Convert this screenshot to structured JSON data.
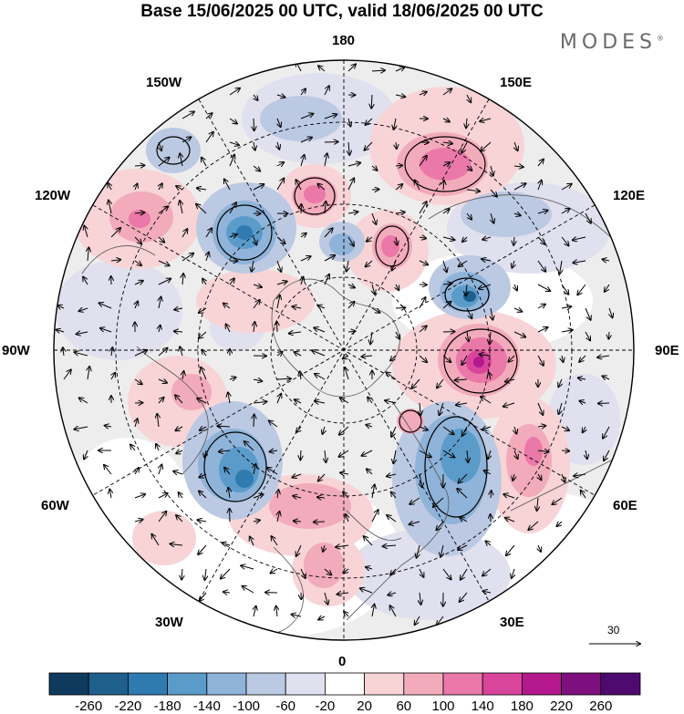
{
  "title": "Base 15/06/2025 00 UTC, valid 18/06/2025 00 UTC",
  "brand": "MODES",
  "brand_mark": "®",
  "longitude_labels": {
    "top": "180",
    "bottom": "0",
    "left": "90W",
    "right": "90E",
    "upper_left_1": "150W",
    "upper_left_2": "120W",
    "upper_right_1": "150E",
    "upper_right_2": "120E",
    "lower_left_1": "60W",
    "lower_left_2": "30W",
    "lower_right_1": "60E",
    "lower_right_2": "30E"
  },
  "reference_vector_label": "30",
  "colorbar": {
    "labels": [
      "-260",
      "-220",
      "-180",
      "-140",
      "-100",
      "-60",
      "-20",
      "20",
      "60",
      "100",
      "140",
      "180",
      "220",
      "260"
    ],
    "colors": [
      "#0e3a5e",
      "#1e5f8c",
      "#2f7bb0",
      "#5b9bc9",
      "#8fb3d9",
      "#bcc9e3",
      "#e0e0ee",
      "#ffffff",
      "#f8d4d6",
      "#f2abbb",
      "#ea78a8",
      "#d8459a",
      "#b5178c",
      "#7d0f7f",
      "#4e0a6e"
    ]
  },
  "chart_data": {
    "type": "map",
    "projection": "north-polar-stereographic",
    "colorbar_levels": [
      -260,
      -220,
      -180,
      -140,
      -100,
      -60,
      -20,
      20,
      60,
      100,
      140,
      180,
      220,
      260
    ],
    "graticule_meridians": [
      "0",
      "30E",
      "60E",
      "90E",
      "120E",
      "150E",
      "180",
      "150W",
      "120W",
      "90W",
      "60W",
      "30W"
    ],
    "reference_vector": 30
  }
}
